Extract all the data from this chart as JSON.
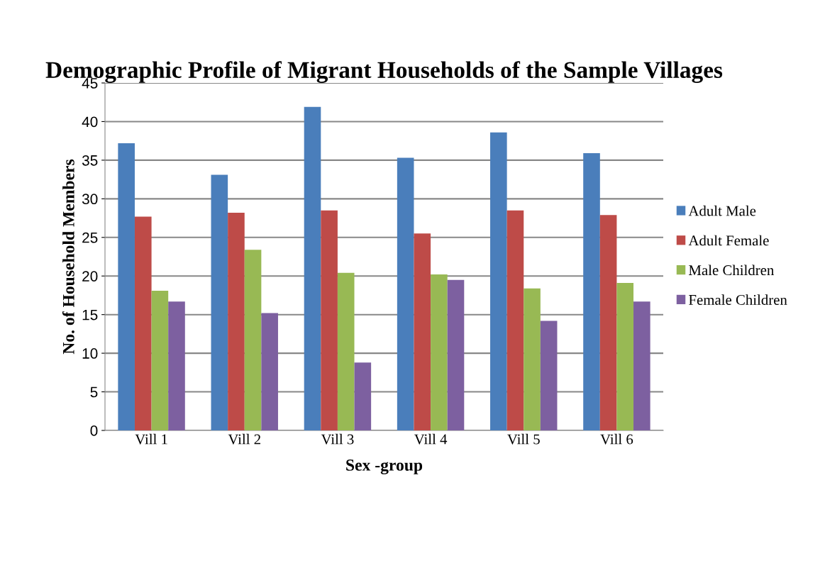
{
  "chart_data": {
    "type": "bar",
    "title": "Demographic Profile of Migrant Households of the Sample Villages",
    "xlabel": "Sex -group",
    "ylabel": "No. of Household Members",
    "categories": [
      "Vill 1",
      "Vill 2",
      "Vill 3",
      "Vill 4",
      "Vill 5",
      "Vill 6"
    ],
    "series": [
      {
        "name": "Adult Male",
        "color": "#4a7ebb",
        "values": [
          37.2,
          33.1,
          41.9,
          35.3,
          38.6,
          35.9
        ]
      },
      {
        "name": "Adult Female",
        "color": "#be4b48",
        "values": [
          27.7,
          28.2,
          28.5,
          25.5,
          28.5,
          27.9
        ]
      },
      {
        "name": "Male Children",
        "color": "#98b954",
        "values": [
          18.1,
          23.4,
          20.4,
          20.2,
          18.4,
          19.1
        ]
      },
      {
        "name": "Female Children",
        "color": "#7d60a0",
        "values": [
          16.7,
          15.2,
          8.8,
          19.5,
          14.2,
          16.7
        ]
      }
    ],
    "ylim": [
      0,
      45
    ],
    "yticks": [
      0,
      5,
      10,
      15,
      20,
      25,
      30,
      35,
      40,
      45
    ],
    "grid": "y",
    "legend": "right"
  }
}
